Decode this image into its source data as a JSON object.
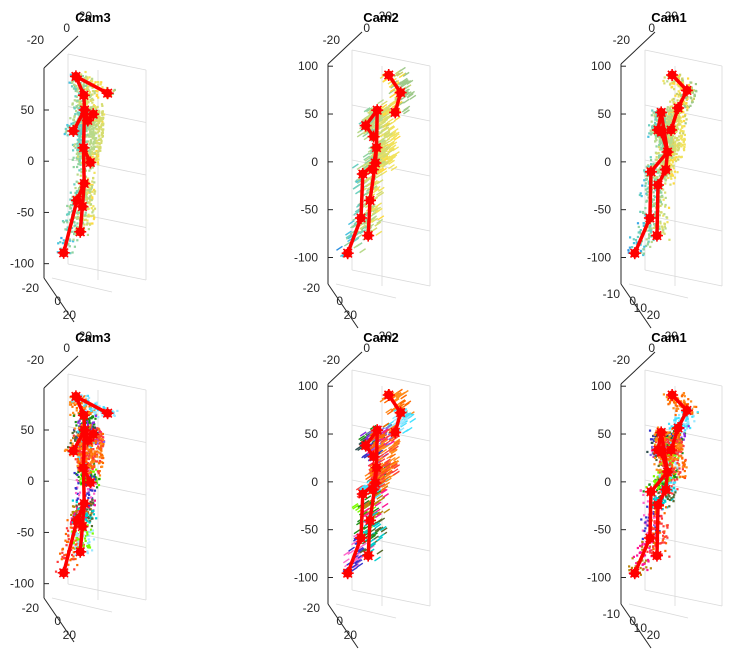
{
  "figure": {
    "rows": 2,
    "cols": 3,
    "marker_color": "#ff0000",
    "skeleton_color": "#ff0000",
    "axis_color": "#262626",
    "grid_color": "#d9d9d9"
  },
  "chart_data": [
    {
      "type": "scatter",
      "title": "Cam3",
      "view": "cam3",
      "coloring": "depth",
      "z_ticks": [
        "50",
        "0",
        "-50",
        "-100"
      ],
      "top_ticks": [
        "-20",
        "0",
        "20"
      ],
      "bottom_ticks": [
        "-20",
        "0",
        "20"
      ]
    },
    {
      "type": "scatter",
      "title": "Cam2",
      "view": "cam2",
      "coloring": "depth",
      "z_ticks": [
        "100",
        "50",
        "0",
        "-50",
        "-100"
      ],
      "top_ticks": [
        "-20",
        "0",
        "20"
      ],
      "bottom_ticks": [
        "-20",
        "0",
        "20"
      ]
    },
    {
      "type": "scatter",
      "title": "Cam1",
      "view": "cam1",
      "coloring": "depth",
      "z_ticks": [
        "100",
        "50",
        "0",
        "-50",
        "-100"
      ],
      "top_ticks": [
        "-20",
        "0",
        "20"
      ],
      "bottom_ticks": [
        "-10",
        "0",
        "10",
        "20"
      ]
    },
    {
      "type": "scatter",
      "title": "Cam3",
      "view": "cam3",
      "coloring": "segments",
      "z_ticks": [
        "50",
        "0",
        "-50",
        "-100"
      ],
      "top_ticks": [
        "-20",
        "0",
        "20"
      ],
      "bottom_ticks": [
        "-20",
        "0",
        "20"
      ]
    },
    {
      "type": "scatter",
      "title": "Cam2",
      "view": "cam2",
      "coloring": "segments",
      "z_ticks": [
        "100",
        "50",
        "0",
        "-50",
        "-100"
      ],
      "top_ticks": [
        "-20",
        "0",
        "20"
      ],
      "bottom_ticks": [
        "-20",
        "0",
        "20"
      ]
    },
    {
      "type": "scatter",
      "title": "Cam1",
      "view": "cam1",
      "coloring": "segments",
      "z_ticks": [
        "100",
        "50",
        "0",
        "-50",
        "-100"
      ],
      "top_ticks": [
        "-20",
        "0",
        "20"
      ],
      "bottom_ticks": [
        "-10",
        "0",
        "10",
        "20"
      ]
    }
  ]
}
